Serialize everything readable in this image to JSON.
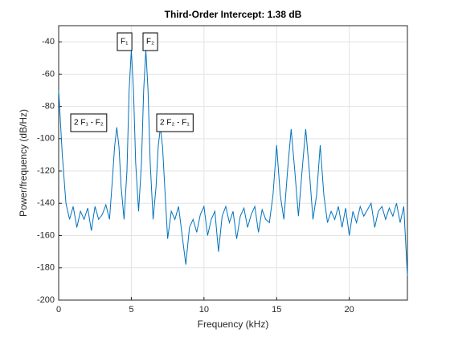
{
  "chart_data": {
    "type": "line",
    "title": "Third-Order Intercept:   1.38 dB",
    "xlabel": "Frequency (kHz)",
    "ylabel": "Power/frequency (dB/Hz)",
    "xlim": [
      0,
      24
    ],
    "ylim": [
      -200,
      -30
    ],
    "xticks": [
      0,
      5,
      10,
      15,
      20
    ],
    "yticks": [
      -200,
      -180,
      -160,
      -140,
      -120,
      -100,
      -80,
      -60,
      -40
    ],
    "grid": true,
    "color": "#0072bd",
    "annotations": [
      "F₁",
      "F₂",
      "2  F₁  -  F₂",
      "2  F₂  -  F₁"
    ],
    "x": [
      0,
      0.25,
      0.5,
      0.75,
      1,
      1.25,
      1.5,
      1.75,
      2,
      2.25,
      2.5,
      2.75,
      3,
      3.25,
      3.5,
      3.7,
      3.85,
      4,
      4.15,
      4.3,
      4.5,
      4.7,
      4.85,
      5,
      5.15,
      5.3,
      5.5,
      5.7,
      5.85,
      6,
      6.15,
      6.3,
      6.5,
      6.7,
      6.85,
      7,
      7.15,
      7.3,
      7.5,
      7.75,
      8,
      8.25,
      8.5,
      8.75,
      9,
      9.25,
      9.5,
      9.75,
      10,
      10.25,
      10.5,
      10.75,
      11,
      11.25,
      11.5,
      11.75,
      12,
      12.25,
      12.5,
      12.75,
      13,
      13.25,
      13.5,
      13.75,
      14,
      14.25,
      14.5,
      14.75,
      15,
      15.25,
      15.5,
      15.75,
      16,
      16.25,
      16.5,
      16.75,
      17,
      17.25,
      17.5,
      17.75,
      18,
      18.25,
      18.5,
      18.75,
      19,
      19.25,
      19.5,
      19.75,
      20,
      20.25,
      20.5,
      20.75,
      21,
      21.25,
      21.5,
      21.75,
      22,
      22.25,
      22.5,
      22.75,
      23,
      23.25,
      23.5,
      23.75,
      24
    ],
    "values": [
      -70,
      -110,
      -140,
      -150,
      -142,
      -155,
      -145,
      -150,
      -143,
      -157,
      -142,
      -150,
      -147,
      -141,
      -150,
      -125,
      -105,
      -93,
      -105,
      -130,
      -150,
      -120,
      -70,
      -45,
      -70,
      -115,
      -145,
      -115,
      -70,
      -45,
      -70,
      -115,
      -150,
      -130,
      -105,
      -93,
      -105,
      -130,
      -162,
      -145,
      -150,
      -142,
      -160,
      -178,
      -155,
      -150,
      -158,
      -147,
      -142,
      -160,
      -150,
      -145,
      -170,
      -148,
      -142,
      -152,
      -145,
      -162,
      -148,
      -143,
      -155,
      -147,
      -142,
      -158,
      -144,
      -150,
      -152,
      -135,
      -104,
      -135,
      -150,
      -120,
      -94,
      -120,
      -148,
      -120,
      -94,
      -120,
      -150,
      -135,
      -104,
      -135,
      -152,
      -145,
      -150,
      -142,
      -155,
      -143,
      -160,
      -145,
      -152,
      -142,
      -148,
      -144,
      -140,
      -155,
      -145,
      -142,
      -150,
      -143,
      -148,
      -140,
      -152,
      -142,
      -185
    ]
  }
}
